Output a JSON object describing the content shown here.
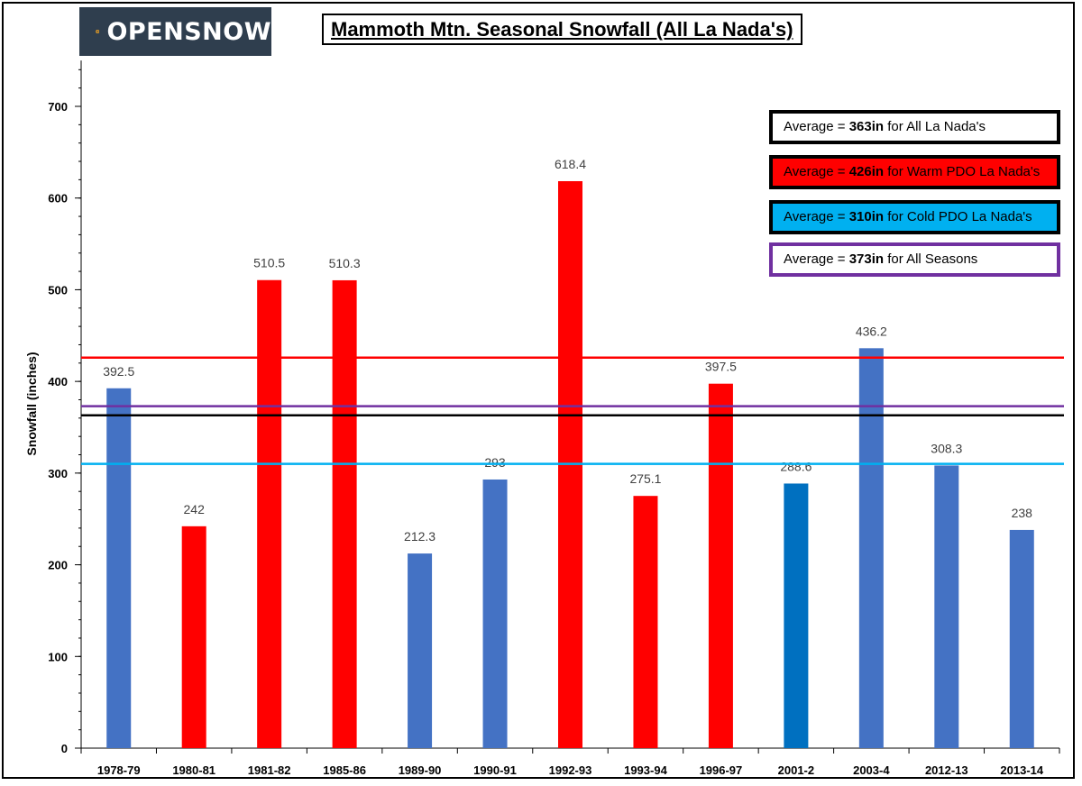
{
  "brand": {
    "name": "OPENSNOW"
  },
  "chart_data": {
    "type": "bar",
    "title": "Mammoth Mtn. Seasonal Snowfall (All La Nada's)",
    "ylabel": "Snowfall (inches)",
    "xlabel": "",
    "ylim": [
      0,
      750
    ],
    "yticks": [
      0,
      100,
      200,
      300,
      400,
      500,
      600,
      700
    ],
    "grid": false,
    "categories": [
      "1978-79",
      "1980-81",
      "1981-82",
      "1985-86",
      "1989-90",
      "1990-91",
      "1992-93",
      "1993-94",
      "1996-97",
      "2001-2",
      "2003-4",
      "2012-13",
      "2013-14"
    ],
    "values": [
      392.5,
      242,
      510.5,
      510.3,
      212.3,
      293,
      618.4,
      275.1,
      397.5,
      288.6,
      436.2,
      308.3,
      238
    ],
    "value_labels": [
      "392.5",
      "242",
      "510.5",
      "510.3",
      "212.3",
      "293",
      "618.4",
      "275.1",
      "397.5",
      "288.6",
      "436.2",
      "308.3",
      "238"
    ],
    "bar_colors": [
      "#4472c4",
      "#ff0000",
      "#ff0000",
      "#ff0000",
      "#4472c4",
      "#4472c4",
      "#ff0000",
      "#ff0000",
      "#ff0000",
      "#0070c0",
      "#4472c4",
      "#4472c4",
      "#4472c4"
    ],
    "reference_lines": [
      {
        "value": 426,
        "color": "#ff0000"
      },
      {
        "value": 373,
        "color": "#7030a0"
      },
      {
        "value": 363,
        "color": "#000000"
      },
      {
        "value": 310,
        "color": "#00b0f0"
      }
    ]
  },
  "legend": [
    {
      "prefix": "Average = ",
      "value": "363in",
      "suffix": " for All La Nada's",
      "bg": "#ffffff",
      "border": "#000000"
    },
    {
      "prefix": "Average = ",
      "value": "426in",
      "suffix": " for Warm PDO La Nada's",
      "bg": "#ff0000",
      "border": "#000000"
    },
    {
      "prefix": "Average = ",
      "value": "310in",
      "suffix": " for Cold PDO La Nada's",
      "bg": "#00b0f0",
      "border": "#000000"
    },
    {
      "prefix": "Average = ",
      "value": "373in",
      "suffix": " for All Seasons",
      "bg": "#ffffff",
      "border": "#7030a0"
    }
  ]
}
